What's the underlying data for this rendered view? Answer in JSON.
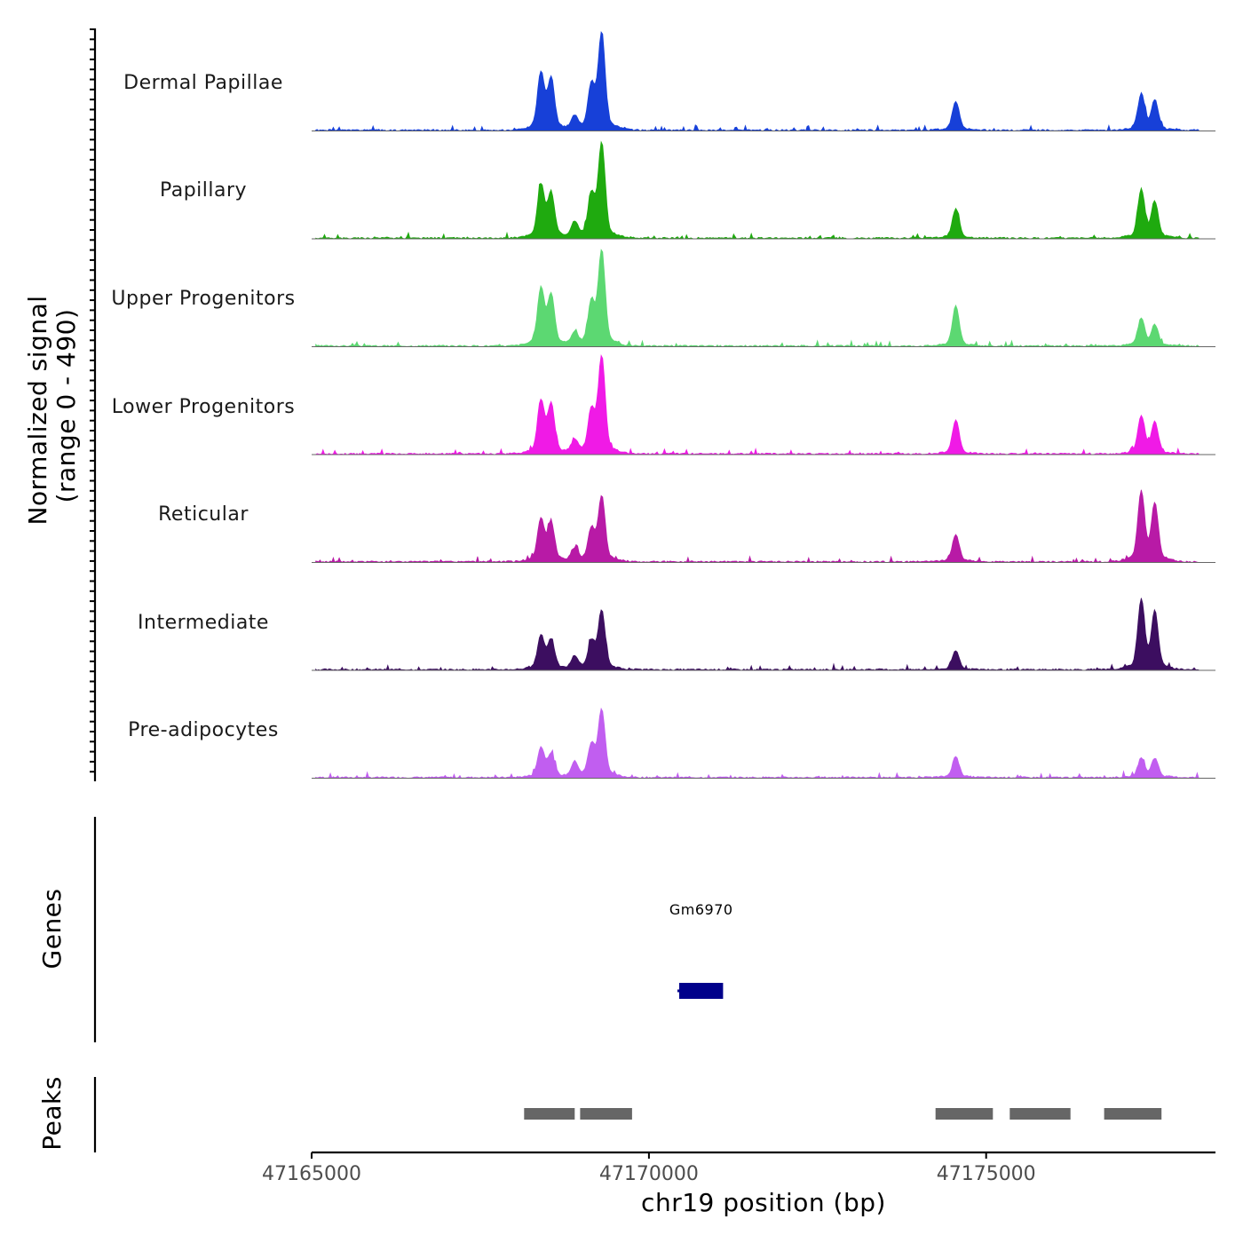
{
  "chart_data": {
    "type": "area",
    "title": "",
    "ylabel_line1": "Normalized signal",
    "ylabel_line2": "(range 0 - 490)",
    "y_range": [
      0,
      490
    ],
    "xlabel": "chr19 position (bp)",
    "chromosome": "chr19",
    "xlim": [
      47165000,
      47178400
    ],
    "signal_end": 47178150,
    "x_ticks": [
      47165000,
      47170000,
      47175000
    ],
    "x_tick_labels": [
      "47165000",
      "47170000",
      "47175000"
    ],
    "tracks": [
      {
        "name": "Dermal Papillae",
        "color": "#1740d8",
        "peaks": [
          [
            47168400,
            270
          ],
          [
            47168550,
            240
          ],
          [
            47169300,
            460
          ],
          [
            47169150,
            210
          ],
          [
            47168900,
            60
          ],
          [
            47174550,
            140
          ],
          [
            47177300,
            170
          ],
          [
            47177500,
            140
          ]
        ],
        "noise_seed": 1
      },
      {
        "name": "Papillary",
        "color": "#1faa0f",
        "peaks": [
          [
            47168400,
            250
          ],
          [
            47168550,
            210
          ],
          [
            47169300,
            450
          ],
          [
            47169150,
            200
          ],
          [
            47168900,
            70
          ],
          [
            47174550,
            140
          ],
          [
            47177300,
            230
          ],
          [
            47177500,
            170
          ]
        ],
        "noise_seed": 2
      },
      {
        "name": "Upper Progenitors",
        "color": "#5cd872",
        "peaks": [
          [
            47168400,
            270
          ],
          [
            47168550,
            240
          ],
          [
            47169300,
            450
          ],
          [
            47169150,
            200
          ],
          [
            47168900,
            60
          ],
          [
            47174550,
            190
          ],
          [
            47177300,
            130
          ],
          [
            47177500,
            100
          ]
        ],
        "noise_seed": 3
      },
      {
        "name": "Lower Progenitors",
        "color": "#f01ae6",
        "peaks": [
          [
            47168400,
            250
          ],
          [
            47168550,
            230
          ],
          [
            47169300,
            460
          ],
          [
            47169150,
            200
          ],
          [
            47168900,
            60
          ],
          [
            47174550,
            160
          ],
          [
            47177300,
            180
          ],
          [
            47177500,
            150
          ]
        ],
        "noise_seed": 4
      },
      {
        "name": "Reticular",
        "color": "#b81aa6",
        "peaks": [
          [
            47168400,
            200
          ],
          [
            47168550,
            180
          ],
          [
            47169300,
            310
          ],
          [
            47169150,
            150
          ],
          [
            47168900,
            60
          ],
          [
            47174550,
            130
          ],
          [
            47177300,
            330
          ],
          [
            47177500,
            270
          ]
        ],
        "noise_seed": 5
      },
      {
        "name": "Intermediate",
        "color": "#3c0e60",
        "peaks": [
          [
            47168400,
            160
          ],
          [
            47168550,
            140
          ],
          [
            47169300,
            280
          ],
          [
            47169150,
            130
          ],
          [
            47168900,
            60
          ],
          [
            47174550,
            90
          ],
          [
            47177300,
            330
          ],
          [
            47177500,
            270
          ]
        ],
        "noise_seed": 6
      },
      {
        "name": "Pre-adipocytes",
        "color": "#c15ef0",
        "peaks": [
          [
            47168400,
            140
          ],
          [
            47168550,
            110
          ],
          [
            47169300,
            320
          ],
          [
            47169150,
            150
          ],
          [
            47168900,
            70
          ],
          [
            47174550,
            100
          ],
          [
            47177300,
            90
          ],
          [
            47177500,
            90
          ]
        ],
        "noise_seed": 7
      }
    ],
    "genes_label": "Genes",
    "genes": [
      {
        "name": "Gm6970",
        "start": 47170450,
        "end": 47171100,
        "color": "#00008b"
      }
    ],
    "peaks_label": "Peaks",
    "peak_regions": [
      {
        "start": 47168150,
        "end": 47168900
      },
      {
        "start": 47168980,
        "end": 47169750
      },
      {
        "start": 47174250,
        "end": 47175100
      },
      {
        "start": 47175350,
        "end": 47176250
      },
      {
        "start": 47176750,
        "end": 47177600
      }
    ],
    "peak_color": "#666666"
  }
}
